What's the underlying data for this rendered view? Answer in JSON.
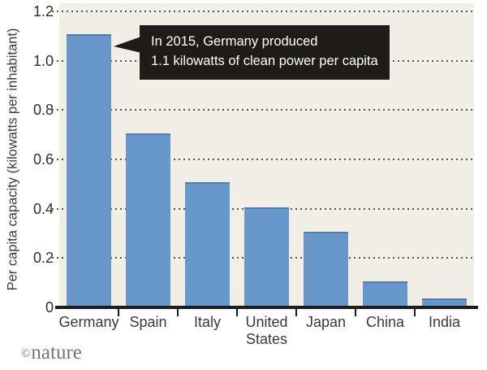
{
  "chart_data": {
    "type": "bar",
    "title": "",
    "xlabel": "",
    "ylabel": "Per capita capacity (kilowatts per inhabitant)",
    "categories": [
      "Germany",
      "Spain",
      "Italy",
      "United States",
      "Japan",
      "China",
      "India"
    ],
    "values": [
      1.1,
      0.7,
      0.5,
      0.4,
      0.3,
      0.1,
      0.03
    ],
    "x_tick_labels": [
      "Germany",
      "Spain",
      "Italy",
      "United\nStates",
      "Japan",
      "China",
      "India"
    ],
    "ylim": [
      0,
      1.2
    ],
    "yticks": [
      0,
      0.2,
      0.4,
      0.6,
      0.8,
      1.0,
      1.2
    ],
    "ytick_labels": [
      "0",
      "0.2",
      "0.4",
      "0.6",
      "0.8",
      "1.0",
      "1.2"
    ],
    "grid": "horizontal-dotted",
    "legend": "none",
    "annotation": {
      "line1": "In 2015, Germany produced",
      "line2": "1.1 kilowatts of clean power per capita",
      "target": "Germany bar"
    },
    "colors": {
      "bar": "#6897cb",
      "bar_top_edge": "#4d7fb2",
      "plot_background": "#f1eee5",
      "page_background": "#ffffff",
      "axis": "#1c1c1c",
      "grid_dot": "#55524b",
      "annotation_bg": "#1e1b18",
      "annotation_text": "#ffffff",
      "label_text": "#3a3a3a",
      "source_text": "#757575"
    }
  },
  "footer": {
    "copyright_symbol": "©",
    "source_name": "nature"
  }
}
